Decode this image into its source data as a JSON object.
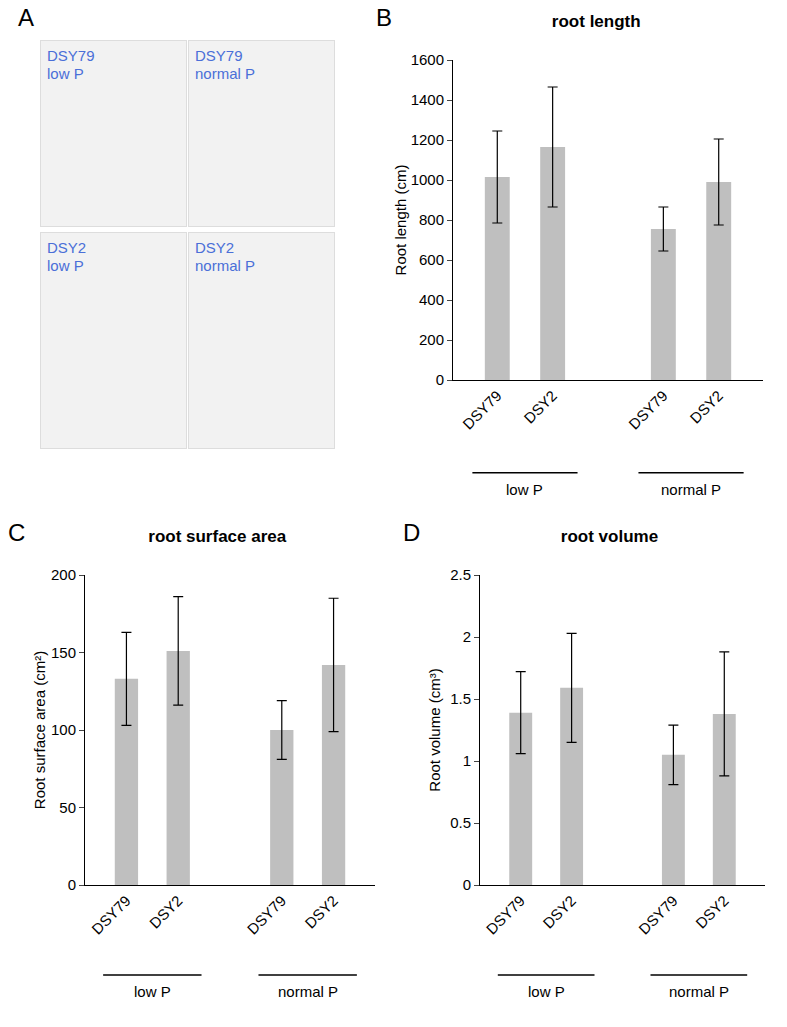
{
  "image_panel": {
    "panel": "A",
    "captions": [
      [
        "DSY79",
        "low P"
      ],
      [
        "DSY79",
        "normal P"
      ],
      [
        "DSY2",
        "low P"
      ],
      [
        "DSY2",
        "normal P"
      ]
    ]
  },
  "chart_data": [
    {
      "type": "bar",
      "panel": "B",
      "title": "root length",
      "y_label": "Root length (cm)",
      "categories": [
        "DSY79",
        "DSY2",
        "DSY79",
        "DSY2"
      ],
      "groups": [
        "low P",
        "low P",
        "normal P",
        "normal P"
      ],
      "values": [
        1015,
        1165,
        755,
        990
      ],
      "errors": [
        230,
        300,
        110,
        215
      ],
      "color": "#bfbfbf",
      "ylim": [
        0,
        1600
      ],
      "yticks": [
        0,
        200,
        400,
        600,
        800,
        1000,
        1200,
        1400,
        1600
      ],
      "grid": false
    },
    {
      "type": "bar",
      "panel": "C",
      "title": "root surface area",
      "y_label": "Root surface area (cm²)",
      "categories": [
        "DSY79",
        "DSY2",
        "DSY79",
        "DSY2"
      ],
      "groups": [
        "low P",
        "low P",
        "normal P",
        "normal P"
      ],
      "values": [
        133,
        151,
        100,
        142
      ],
      "errors": [
        30,
        35,
        19,
        43
      ],
      "color": "#bfbfbf",
      "ylim": [
        0,
        200
      ],
      "yticks": [
        0,
        50,
        100,
        150,
        200
      ],
      "grid": false
    },
    {
      "type": "bar",
      "panel": "D",
      "title": "root volume",
      "y_label": "Root volume (cm³)",
      "categories": [
        "DSY79",
        "DSY2",
        "DSY79",
        "DSY2"
      ],
      "groups": [
        "low P",
        "low P",
        "normal P",
        "normal P"
      ],
      "values": [
        1.39,
        1.59,
        1.05,
        1.38
      ],
      "errors": [
        0.33,
        0.44,
        0.24,
        0.5
      ],
      "color": "#bfbfbf",
      "ylim": [
        0,
        2.5
      ],
      "yticks": [
        0,
        0.5,
        1,
        1.5,
        2,
        2.5
      ],
      "grid": false
    }
  ]
}
